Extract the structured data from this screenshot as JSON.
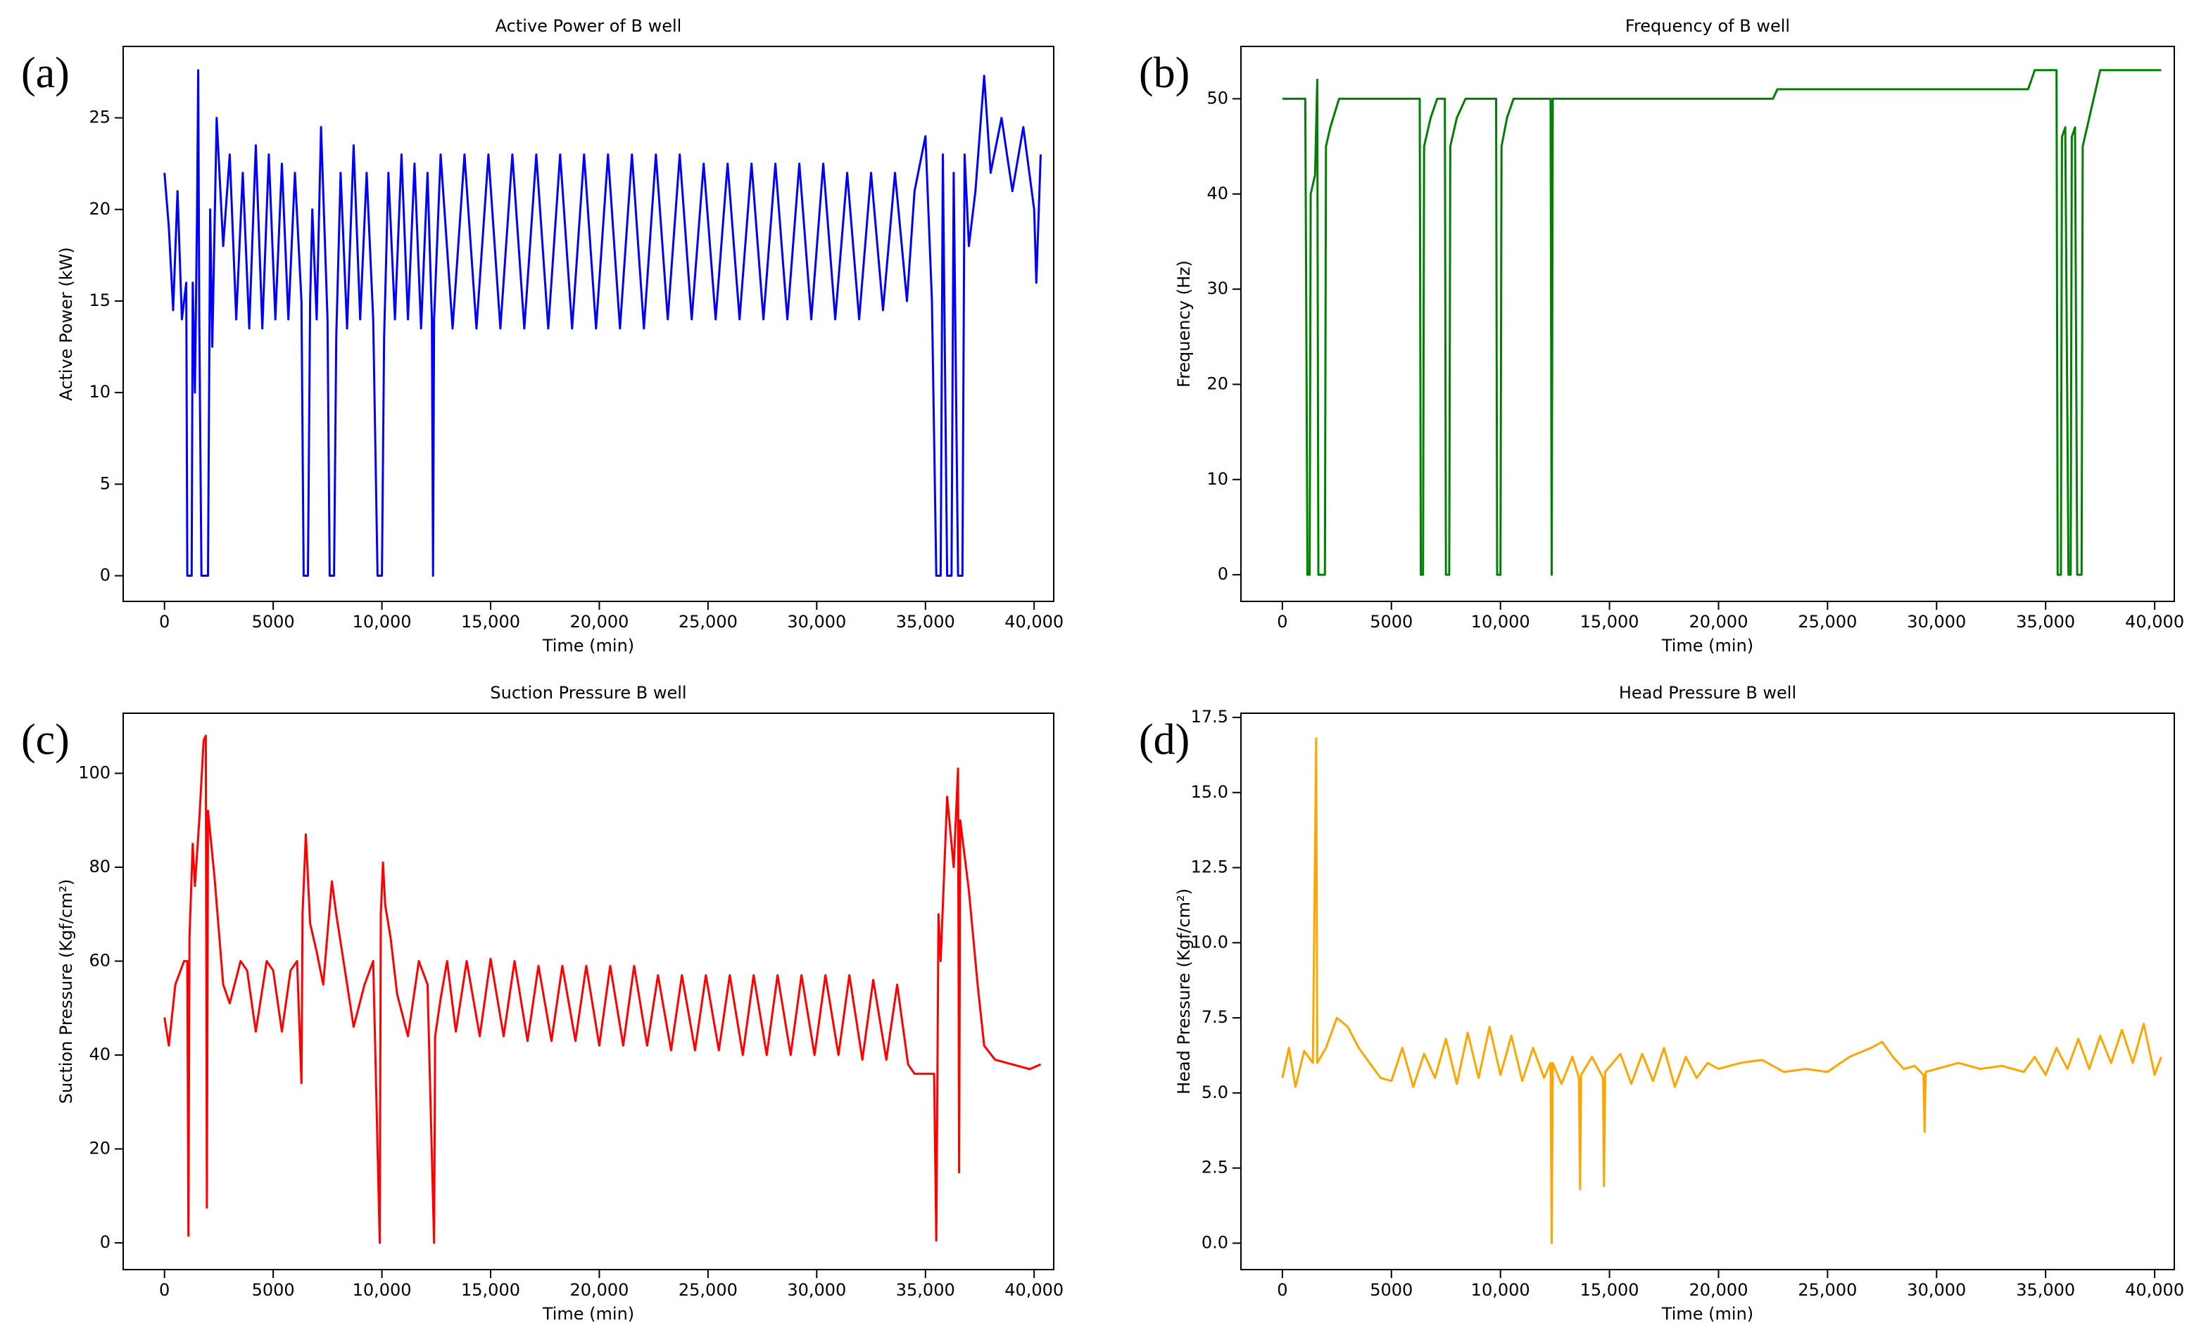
{
  "chart_data": [
    {
      "type": "line",
      "panel_label": "(a)",
      "title": "Active Power of B well",
      "xlabel": "Time (min)",
      "ylabel": "Active Power (kW)",
      "color": "#0000ff",
      "xlim": [
        -1900,
        40900
      ],
      "ylim": [
        -1.4,
        28.9
      ],
      "xticks": [
        0,
        5000,
        {
          "value": 10000,
          "label": "10,000"
        },
        {
          "value": 15000,
          "label": "15,000"
        },
        {
          "value": 20000,
          "label": "20,000"
        },
        {
          "value": 25000,
          "label": "25,000"
        },
        {
          "value": 30000,
          "label": "30,000"
        },
        {
          "value": 35000,
          "label": "35,000"
        },
        {
          "value": 40000,
          "label": "40,000"
        }
      ],
      "yticks": [
        0,
        5,
        10,
        15,
        20,
        25
      ],
      "x": [
        0,
        200,
        400,
        600,
        800,
        1000,
        1050,
        1250,
        1300,
        1400,
        1500,
        1550,
        1600,
        1700,
        2000,
        2100,
        2200,
        2400,
        2700,
        3000,
        3300,
        3600,
        3900,
        4200,
        4500,
        4800,
        5100,
        5400,
        5700,
        6000,
        6300,
        6400,
        6600,
        6700,
        6800,
        7000,
        7200,
        7500,
        7600,
        7800,
        7900,
        8100,
        8400,
        8700,
        9000,
        9300,
        9600,
        9800,
        10000,
        10100,
        10300,
        10600,
        10900,
        11200,
        11500,
        11800,
        12100,
        12300,
        12350,
        12400,
        12700,
        13250,
        13800,
        14350,
        14900,
        15450,
        16000,
        16550,
        17100,
        17650,
        18200,
        18750,
        19300,
        19850,
        20400,
        20950,
        21500,
        22050,
        22600,
        23150,
        23700,
        24250,
        24800,
        25350,
        25900,
        26450,
        27000,
        27550,
        28100,
        28650,
        29200,
        29750,
        30300,
        30850,
        31400,
        31950,
        32500,
        33050,
        33600,
        34150,
        34500,
        35000,
        35300,
        35500,
        35700,
        35800,
        36000,
        36200,
        36300,
        36500,
        36700,
        36800,
        37000,
        37300,
        37700,
        38000,
        38500,
        39000,
        39500,
        40000,
        40100,
        40300
      ],
      "values": [
        22,
        19,
        14.5,
        21,
        14,
        16,
        0,
        0,
        16,
        10,
        20,
        27.6,
        14,
        0,
        0,
        20,
        12.5,
        25,
        18,
        23,
        14,
        22,
        13.5,
        23.5,
        13.5,
        23,
        14,
        22.5,
        14,
        22,
        15,
        0,
        0,
        15,
        20,
        14,
        24.5,
        14,
        0,
        0,
        13,
        22,
        13.5,
        23.5,
        14,
        22,
        14,
        0,
        0,
        13,
        22,
        14,
        23,
        14,
        22.5,
        13.5,
        22,
        14,
        0,
        14,
        23,
        13.5,
        23,
        13.5,
        23,
        13.5,
        23,
        13.5,
        23,
        13.5,
        23,
        13.5,
        23,
        13.5,
        23,
        13.5,
        23,
        13.5,
        23,
        14,
        23,
        14,
        22.5,
        14,
        22.5,
        14,
        22.5,
        14,
        22.5,
        14,
        22.5,
        14,
        22.5,
        14,
        22,
        14,
        22,
        14.5,
        22,
        15,
        21,
        24,
        15,
        0,
        0,
        23,
        0,
        0,
        22,
        0,
        0,
        23,
        18,
        21,
        27.3,
        22,
        25,
        21,
        24.5,
        20,
        16,
        23
      ]
    },
    {
      "type": "line",
      "panel_label": "(b)",
      "title": "Frequency of B well",
      "xlabel": "Time (min)",
      "ylabel": "Frequency (Hz)",
      "color": "#008000",
      "xlim": [
        -1900,
        40900
      ],
      "ylim": [
        -2.8,
        55.5
      ],
      "xticks": [
        0,
        5000,
        {
          "value": 10000,
          "label": "10,000"
        },
        {
          "value": 15000,
          "label": "15,000"
        },
        {
          "value": 20000,
          "label": "20,000"
        },
        {
          "value": 25000,
          "label": "25,000"
        },
        {
          "value": 30000,
          "label": "30,000"
        },
        {
          "value": 35000,
          "label": "35,000"
        },
        {
          "value": 40000,
          "label": "40,000"
        }
      ],
      "yticks": [
        0,
        10,
        20,
        30,
        40,
        50
      ],
      "x": [
        0,
        1050,
        1150,
        1250,
        1300,
        1500,
        1600,
        1650,
        1950,
        2000,
        2200,
        2600,
        6300,
        6350,
        6450,
        6500,
        6800,
        7100,
        7450,
        7500,
        7650,
        7700,
        8000,
        8400,
        9800,
        9850,
        10000,
        10050,
        10300,
        10600,
        12300,
        12350,
        12400,
        22500,
        22700,
        34200,
        34500,
        35500,
        35550,
        35700,
        35750,
        35900,
        36050,
        36150,
        36200,
        36350,
        36450,
        36650,
        36700,
        37000,
        37500,
        40300
      ],
      "values": [
        50,
        50,
        0,
        0,
        40,
        42,
        52,
        0,
        0,
        45,
        47,
        50,
        50,
        0,
        0,
        45,
        48,
        50,
        50,
        0,
        0,
        45,
        48,
        50,
        50,
        0,
        0,
        45,
        48,
        50,
        50,
        0,
        50,
        50,
        51,
        51,
        53,
        53,
        0,
        0,
        46,
        47,
        0,
        0,
        46,
        47,
        0,
        0,
        45,
        48,
        53,
        53
      ]
    },
    {
      "type": "line",
      "panel_label": "(c)",
      "title": "Suction Pressure B well",
      "xlabel": "Time (min)",
      "ylabel": "Suction Pressure (Kgf/cm²)",
      "color": "#ff0000",
      "xlim": [
        -1900,
        40900
      ],
      "ylim": [
        -5.7,
        112.8
      ],
      "xticks": [
        0,
        5000,
        {
          "value": 10000,
          "label": "10,000"
        },
        {
          "value": 15000,
          "label": "15,000"
        },
        {
          "value": 20000,
          "label": "20,000"
        },
        {
          "value": 25000,
          "label": "25,000"
        },
        {
          "value": 30000,
          "label": "30,000"
        },
        {
          "value": 35000,
          "label": "35,000"
        },
        {
          "value": 40000,
          "label": "40,000"
        }
      ],
      "yticks": [
        0,
        20,
        40,
        60,
        80,
        100
      ],
      "x": [
        0,
        200,
        500,
        900,
        1050,
        1100,
        1150,
        1300,
        1400,
        1600,
        1800,
        1900,
        1950,
        2000,
        2300,
        2700,
        3000,
        3500,
        3800,
        4200,
        4700,
        5000,
        5400,
        5800,
        6100,
        6300,
        6350,
        6500,
        6700,
        7000,
        7300,
        7700,
        7900,
        8300,
        8700,
        9200,
        9600,
        9900,
        9950,
        10050,
        10150,
        10400,
        10700,
        11200,
        11700,
        12100,
        12400,
        12450,
        12700,
        13000,
        13400,
        13900,
        14500,
        15000,
        15600,
        16100,
        16700,
        17200,
        17800,
        18300,
        18900,
        19400,
        20000,
        20500,
        21100,
        21600,
        22200,
        22700,
        23300,
        23800,
        24400,
        24900,
        25500,
        26000,
        26600,
        27100,
        27700,
        28200,
        28800,
        29300,
        29900,
        30400,
        31000,
        31500,
        32100,
        32600,
        33200,
        33700,
        34200,
        34500,
        35400,
        35500,
        35600,
        35700,
        36000,
        36300,
        36500,
        36550,
        36600,
        37000,
        37400,
        37700,
        38200,
        39000,
        39800,
        40300
      ],
      "values": [
        48,
        42,
        55,
        60,
        60,
        1.5,
        65,
        85,
        76,
        90,
        107,
        108,
        7.5,
        92,
        78,
        55,
        51,
        60,
        58,
        45,
        60,
        58,
        45,
        58,
        60,
        34,
        70,
        87,
        68,
        62,
        55,
        77,
        70,
        58,
        46,
        55,
        60,
        0,
        70,
        81,
        72,
        65,
        53,
        44,
        60,
        55,
        0,
        44,
        52,
        60,
        45,
        60,
        44,
        60.5,
        44,
        60,
        43,
        59,
        43,
        59,
        43,
        59,
        42,
        59,
        42,
        59,
        42,
        57,
        41,
        57,
        41,
        57,
        41,
        57,
        40,
        57,
        40,
        57,
        40,
        57,
        40,
        57,
        40,
        57,
        39,
        56,
        39,
        55,
        38,
        36,
        36,
        0.5,
        70,
        60,
        95,
        80,
        101,
        15,
        90,
        75,
        55,
        42,
        39,
        38,
        37,
        38
      ]
    },
    {
      "type": "line",
      "panel_label": "(d)",
      "title": "Head Pressure B well",
      "xlabel": "Time (min)",
      "ylabel": "Head Pressure (Kgf/cm²)",
      "color": "#ffa500",
      "xlim": [
        -1900,
        40900
      ],
      "ylim": [
        -0.88,
        17.64
      ],
      "xticks": [
        0,
        5000,
        {
          "value": 10000,
          "label": "10,000"
        },
        {
          "value": 15000,
          "label": "15,000"
        },
        {
          "value": 20000,
          "label": "20,000"
        },
        {
          "value": 25000,
          "label": "25,000"
        },
        {
          "value": 30000,
          "label": "30,000"
        },
        {
          "value": 35000,
          "label": "35,000"
        },
        {
          "value": 40000,
          "label": "40,000"
        }
      ],
      "yticks": [
        {
          "value": 0,
          "label": "0.0"
        },
        2.5,
        {
          "value": 5,
          "label": "5.0"
        },
        7.5,
        {
          "value": 10,
          "label": "10.0"
        },
        12.5,
        {
          "value": 15,
          "label": "15.0"
        },
        17.5
      ],
      "x": [
        0,
        300,
        600,
        1000,
        1400,
        1550,
        1600,
        2000,
        2500,
        3000,
        3500,
        4000,
        4500,
        5000,
        5500,
        6000,
        6500,
        7000,
        7500,
        8000,
        8500,
        9000,
        9500,
        10000,
        10500,
        11000,
        11500,
        12000,
        12300,
        12350,
        12400,
        12800,
        13300,
        13600,
        13650,
        13700,
        14200,
        14700,
        14750,
        14800,
        15500,
        16000,
        16500,
        17000,
        17500,
        18000,
        18500,
        19000,
        19500,
        20000,
        21000,
        22000,
        23000,
        24000,
        25000,
        26000,
        27000,
        27500,
        28000,
        28500,
        29000,
        29400,
        29450,
        29500,
        30000,
        31000,
        32000,
        33000,
        34000,
        34500,
        35000,
        35500,
        36000,
        36500,
        37000,
        37500,
        38000,
        38500,
        39000,
        39500,
        40000,
        40300
      ],
      "values": [
        5.5,
        6.5,
        5.2,
        6.4,
        6,
        16.8,
        6,
        6.5,
        7.5,
        7.2,
        6.5,
        6,
        5.5,
        5.4,
        6.5,
        5.2,
        6.3,
        5.5,
        6.8,
        5.3,
        7,
        5.5,
        7.2,
        5.6,
        6.9,
        5.4,
        6.5,
        5.5,
        6,
        0,
        6,
        5.3,
        6.2,
        5.5,
        1.8,
        5.6,
        6.2,
        5.5,
        1.9,
        5.7,
        6.3,
        5.3,
        6.3,
        5.4,
        6.5,
        5.2,
        6.2,
        5.5,
        6,
        5.8,
        6,
        6.1,
        5.7,
        5.8,
        5.7,
        6.2,
        6.5,
        6.7,
        6.2,
        5.8,
        5.9,
        5.6,
        3.7,
        5.7,
        5.8,
        6,
        5.8,
        5.9,
        5.7,
        6.2,
        5.6,
        6.5,
        5.8,
        6.8,
        5.8,
        6.9,
        6,
        7.1,
        6,
        7.3,
        5.6,
        6.2
      ]
    }
  ]
}
